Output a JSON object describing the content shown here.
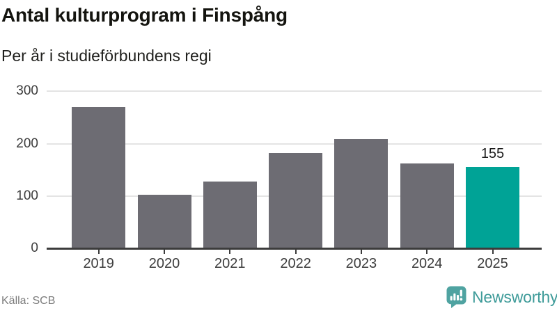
{
  "header": {
    "title": "Antal kulturprogram i Finspång",
    "subtitle": "Per år i studieförbundens regi"
  },
  "chart_data": {
    "type": "bar",
    "title": "Antal kulturprogram i Finspång",
    "subtitle": "Per år i studieförbundens regi",
    "xlabel": "",
    "ylabel": "",
    "categories": [
      "2019",
      "2020",
      "2021",
      "2022",
      "2023",
      "2024",
      "2025"
    ],
    "values": [
      270,
      103,
      127,
      182,
      209,
      162,
      155
    ],
    "highlight_index": 6,
    "annotation": {
      "index": 6,
      "text": "155"
    },
    "yticks": [
      0,
      100,
      200,
      300
    ],
    "ylim": [
      0,
      310
    ],
    "grid": true,
    "legend": "none",
    "bar_color": "#6d6c73",
    "highlight_color": "#00a396",
    "grid_color": "#e4e4e4",
    "axis_color": "#3c3c3c"
  },
  "footer": {
    "source": "Källa: SCB",
    "brand": "Newsworthy",
    "brand_color": "#3e9b99",
    "logo_icon": "newsworthy-speech-bubble-bar-chart-icon"
  }
}
